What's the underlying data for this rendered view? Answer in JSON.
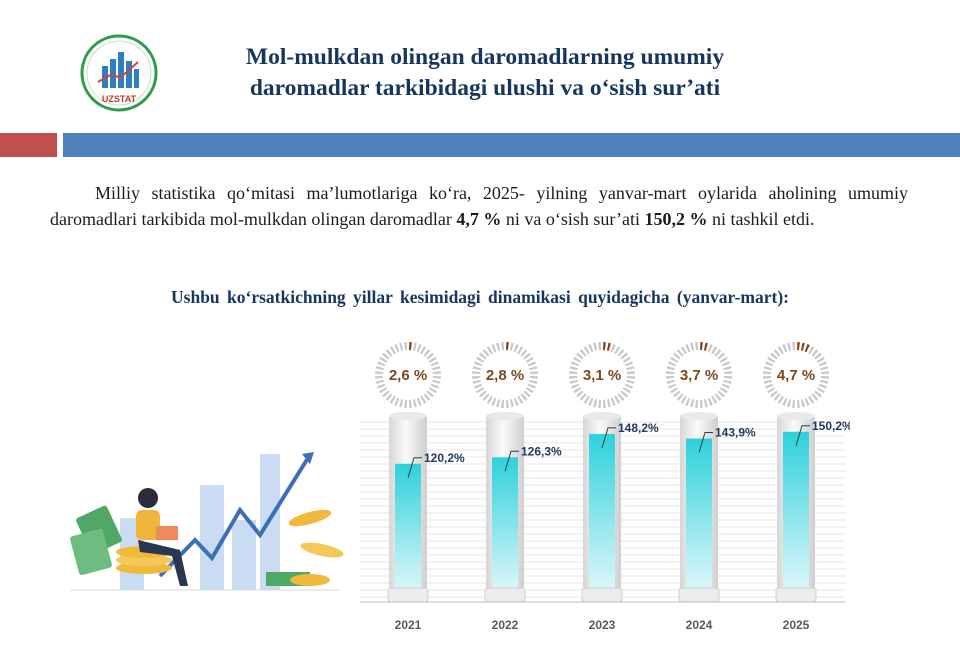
{
  "logo": {
    "text": "UZSTAT"
  },
  "header": {
    "title_line1": "Mol-mulkdan olingan daromadlarning umumiy",
    "title_line2": "daromadlar tarkibidagi ulushi va o‘sish sur’ati"
  },
  "body": {
    "p1": "Milliy statistika qo‘mitasi ma’lumotlariga ko‘ra, 2025- yilning yanvar-mart oylarida aholining umumiy daromadlari tarkibida mol-mulkdan olingan daromadlar",
    "share_value": "4,7 %",
    "p2": "ni va o‘sish sur’ati",
    "growth_value": "150,2 %",
    "p3": "ni tashkil etdi.",
    "subheading": "Ushbu ko‘rsatkichning yillar kesimidagi dinamikasi quyidagicha (yanvar-mart):"
  },
  "chart_data": {
    "type": "bar",
    "categories": [
      "2021",
      "2022",
      "2023",
      "2024",
      "2025"
    ],
    "series": [
      {
        "values": [
          120.2,
          126.3,
          148.2,
          143.9,
          150.2
        ]
      },
      {
        "values": [
          2.6,
          2.8,
          3.1,
          3.7,
          4.7
        ]
      }
    ],
    "bar_labels": [
      "120,2%",
      "126,3%",
      "148,2%",
      "143,9%",
      "150,2%"
    ],
    "donut_labels": [
      "2,6 %",
      "2,8 %",
      "3,1 %",
      "3,7 %",
      "4,7 %"
    ],
    "colors": {
      "bar": "#2dd1dc",
      "donut_fill": "#8b4513",
      "donut_track": "#c8c8c8",
      "donut_label": "#7a4a1e"
    }
  }
}
